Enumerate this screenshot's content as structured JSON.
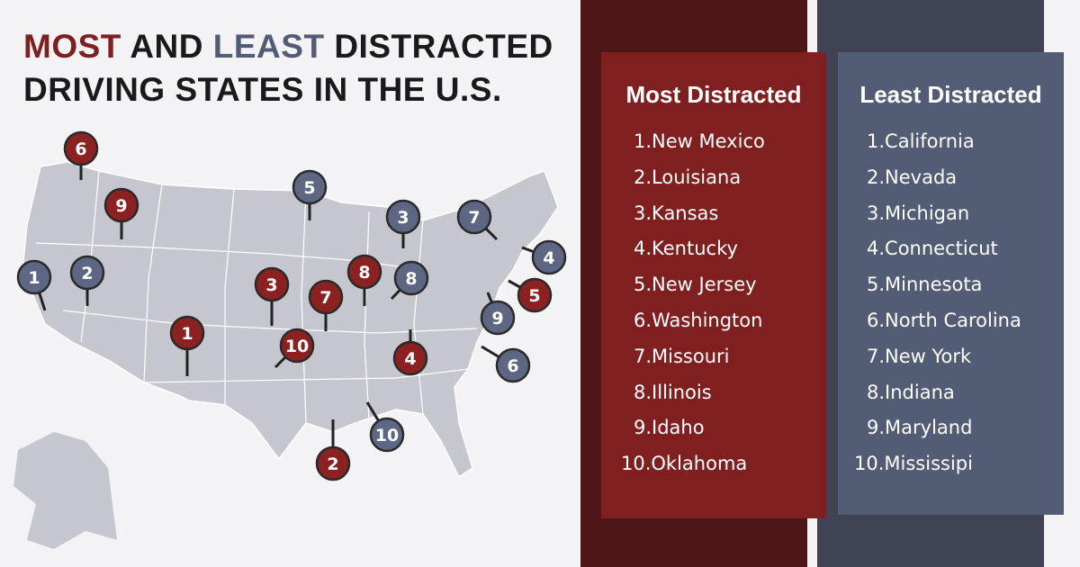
{
  "title": {
    "parts": [
      "MOST",
      "AND",
      "LEAST",
      "DISTRACTED",
      "DRIVING STATES IN THE U.S."
    ]
  },
  "most": {
    "heading": "Most Distracted",
    "items": [
      "1.New Mexico",
      "2.Louisiana",
      "3.Kansas",
      "4.Kentucky",
      "5.New Jersey",
      "6.Washington",
      "7.Missouri",
      "8.Illinois",
      "9.Idaho",
      "10.Oklahoma"
    ]
  },
  "least": {
    "heading": "Least Distracted",
    "items": [
      "1.California",
      "2.Nevada",
      "3.Michigan",
      "4.Connecticut",
      "5.Minnesota",
      "6.North Carolina",
      "7.New York",
      "8.Indiana",
      "9.Maryland",
      "10.Mississipi"
    ]
  },
  "map": {
    "most_pins": [
      "1",
      "2",
      "3",
      "4",
      "5",
      "6",
      "7",
      "8",
      "9",
      "10"
    ],
    "least_pins": [
      "1",
      "2",
      "3",
      "4",
      "5",
      "6",
      "7",
      "8",
      "9",
      "10"
    ]
  }
}
